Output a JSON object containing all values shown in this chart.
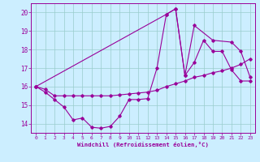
{
  "xlabel": "Windchill (Refroidissement éolien,°C)",
  "bg_color": "#cceeff",
  "line_color": "#990099",
  "grid_color": "#99cccc",
  "xlim": [
    -0.5,
    23.5
  ],
  "ylim": [
    13.5,
    20.5
  ],
  "yticks": [
    14,
    15,
    16,
    17,
    18,
    19,
    20
  ],
  "xticks": [
    0,
    1,
    2,
    3,
    4,
    5,
    6,
    7,
    8,
    9,
    10,
    11,
    12,
    13,
    14,
    15,
    16,
    17,
    18,
    19,
    20,
    21,
    22,
    23
  ],
  "series1_x": [
    0,
    1,
    2,
    3,
    4,
    5,
    6,
    7,
    8,
    9,
    10,
    11,
    12,
    13,
    14,
    15,
    16,
    17,
    18,
    19,
    20,
    21,
    22,
    23
  ],
  "series1_y": [
    16.0,
    15.7,
    15.3,
    14.9,
    14.2,
    14.3,
    13.8,
    13.75,
    13.85,
    14.4,
    15.3,
    15.3,
    15.35,
    17.0,
    19.9,
    20.2,
    16.6,
    17.3,
    18.5,
    17.9,
    17.9,
    16.9,
    16.3,
    16.3
  ],
  "series2_x": [
    0,
    1,
    2,
    3,
    4,
    5,
    6,
    7,
    8,
    9,
    10,
    11,
    12,
    13,
    14,
    15,
    16,
    17,
    18,
    19,
    20,
    21,
    22,
    23
  ],
  "series2_y": [
    16.0,
    15.85,
    15.5,
    15.5,
    15.5,
    15.5,
    15.5,
    15.5,
    15.5,
    15.55,
    15.6,
    15.65,
    15.7,
    15.8,
    16.0,
    16.15,
    16.3,
    16.5,
    16.6,
    16.75,
    16.85,
    17.0,
    17.2,
    17.5
  ],
  "series3_x": [
    0,
    14,
    15,
    16,
    17,
    19,
    21,
    22,
    23
  ],
  "series3_y": [
    16.0,
    19.9,
    20.2,
    16.6,
    19.3,
    18.5,
    18.4,
    17.9,
    16.5
  ]
}
